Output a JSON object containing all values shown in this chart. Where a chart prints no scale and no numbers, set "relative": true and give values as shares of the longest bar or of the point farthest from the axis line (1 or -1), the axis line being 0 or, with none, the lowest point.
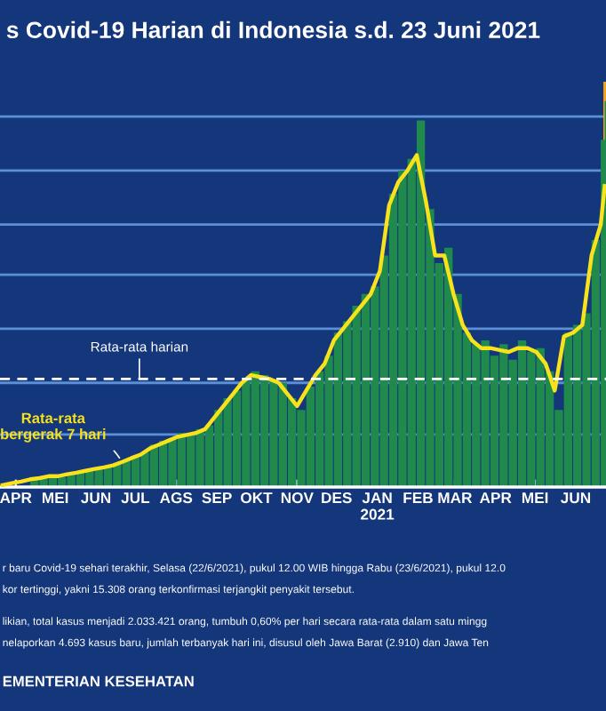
{
  "chart_data": {
    "type": "bar",
    "title": "s Covid-19 Harian di Indonesia s.d. 23 Juni 2021",
    "relative": true,
    "tick_labels": "x",
    "x": [
      "2020-03-22",
      "2020-03-29",
      "2020-04-05",
      "2020-04-12",
      "2020-04-19",
      "2020-04-26",
      "2020-05-03",
      "2020-05-10",
      "2020-05-17",
      "2020-05-24",
      "2020-05-31",
      "2020-06-07",
      "2020-06-14",
      "2020-06-21",
      "2020-06-28",
      "2020-07-05",
      "2020-07-12",
      "2020-07-19",
      "2020-07-26",
      "2020-08-02",
      "2020-08-09",
      "2020-08-16",
      "2020-08-23",
      "2020-08-30",
      "2020-09-06",
      "2020-09-13",
      "2020-09-20",
      "2020-09-27",
      "2020-10-04",
      "2020-10-11",
      "2020-10-18",
      "2020-10-25",
      "2020-11-01",
      "2020-11-08",
      "2020-11-15",
      "2020-11-22",
      "2020-11-29",
      "2020-12-06",
      "2020-12-13",
      "2020-12-20",
      "2020-12-27",
      "2021-01-03",
      "2021-01-10",
      "2021-01-17",
      "2021-01-24",
      "2021-01-31",
      "2021-02-07",
      "2021-02-14",
      "2021-02-21",
      "2021-02-28",
      "2021-03-07",
      "2021-03-14",
      "2021-03-21",
      "2021-03-28",
      "2021-04-04",
      "2021-04-11",
      "2021-04-18",
      "2021-04-25",
      "2021-05-02",
      "2021-05-09",
      "2021-05-16",
      "2021-05-23",
      "2021-05-30",
      "2021-06-06",
      "2021-06-13",
      "2021-06-20",
      "2021-06-23"
    ],
    "xlim": [
      "2020-03-20",
      "2021-06-24"
    ],
    "xticks": [
      {
        "value": "2020-04-01",
        "label": "APR"
      },
      {
        "value": "2020-05-01",
        "label": "MEI"
      },
      {
        "value": "2020-06-01",
        "label": "JUN"
      },
      {
        "value": "2020-07-01",
        "label": "JUL"
      },
      {
        "value": "2020-08-01",
        "label": "AGS"
      },
      {
        "value": "2020-09-01",
        "label": "SEP"
      },
      {
        "value": "2020-10-01",
        "label": "OKT"
      },
      {
        "value": "2020-11-01",
        "label": "NOV"
      },
      {
        "value": "2020-12-01",
        "label": "DES"
      },
      {
        "value": "2021-01-01",
        "label": "JAN\n2021"
      },
      {
        "value": "2021-02-01",
        "label": "FEB"
      },
      {
        "value": "2021-03-01",
        "label": "MAR"
      },
      {
        "value": "2021-04-01",
        "label": "APR"
      },
      {
        "value": "2021-05-01",
        "label": "MEI"
      },
      {
        "value": "2021-06-01",
        "label": "JUN"
      }
    ],
    "series": [
      {
        "color": "#1f8a4c",
        "values": [
          null,
          null,
          null,
          0.02,
          0.025,
          0.03,
          0.025,
          0.035,
          0.04,
          0.045,
          0.05,
          0.055,
          0.06,
          0.07,
          0.08,
          0.09,
          0.11,
          0.12,
          0.125,
          0.14,
          0.14,
          0.15,
          0.16,
          0.2,
          0.23,
          0.25,
          0.28,
          0.3,
          0.29,
          0.28,
          0.27,
          0.23,
          0.2,
          0.26,
          0.3,
          0.34,
          0.4,
          0.43,
          0.47,
          0.5,
          0.52,
          0.6,
          0.76,
          0.82,
          0.85,
          0.95,
          0.72,
          0.58,
          0.62,
          0.5,
          0.4,
          0.37,
          0.38,
          0.34,
          0.37,
          0.33,
          0.38,
          0.35,
          0.36,
          0.3,
          0.2,
          0.4,
          0.42,
          0.45,
          0.64,
          0.9,
          1.0
        ]
      },
      {
        "type": "line",
        "color": "#f7e21b",
        "values": [
          0.005,
          0.01,
          0.014,
          0.02,
          0.023,
          0.028,
          0.028,
          0.033,
          0.037,
          0.042,
          0.047,
          0.051,
          0.056,
          0.065,
          0.075,
          0.084,
          0.1,
          0.11,
          0.12,
          0.13,
          0.135,
          0.14,
          0.15,
          0.18,
          0.21,
          0.24,
          0.27,
          0.29,
          0.285,
          0.28,
          0.27,
          0.24,
          0.21,
          0.25,
          0.29,
          0.32,
          0.38,
          0.41,
          0.44,
          0.47,
          0.5,
          0.56,
          0.73,
          0.79,
          0.82,
          0.86,
          0.74,
          0.6,
          0.6,
          0.5,
          0.42,
          0.38,
          0.36,
          0.36,
          0.355,
          0.35,
          0.36,
          0.36,
          0.35,
          0.32,
          0.25,
          0.39,
          0.4,
          0.42,
          0.6,
          0.68,
          0.78
        ]
      }
    ],
    "ref_lines": [
      {
        "axis": "y",
        "value": 0.28,
        "label": "Rata-rata harian",
        "color": "#ffffff",
        "line_style": "dashed"
      },
      {
        "axis": "y",
        "value": 0.136,
        "color": "#5b8fd6"
      },
      {
        "axis": "y",
        "value": 0.27,
        "color": "#5b8fd6"
      },
      {
        "axis": "y",
        "value": 0.41,
        "color": "#5b8fd6"
      },
      {
        "axis": "y",
        "value": 0.55,
        "color": "#5b8fd6"
      },
      {
        "axis": "y",
        "value": 0.68,
        "color": "#5b8fd6"
      },
      {
        "axis": "y",
        "value": 0.82,
        "color": "#5b8fd6"
      },
      {
        "axis": "y",
        "value": 0.96,
        "color": "#5b8fd6"
      }
    ],
    "bands": [
      {
        "axis": "x",
        "from": "2021-06-22",
        "to": "2021-06-24",
        "color": "#f5a11c"
      }
    ],
    "annotations": [
      {
        "text": "Rata-rata\nbergerak 7 hari",
        "x": "2020-06-21",
        "y": 0.065
      },
      "r baru Covid-19 sehari terakhir, Selasa (22/6/2021), pukul 12.00 WIB hingga Rabu (23/6/2021), pukul 12.0",
      "kor tertinggi, yakni 15.308 orang terkonfirmasi terjangkit penyakit tersebut.",
      "likian, total kasus menjadi 2.033.421 orang, tumbuh 0,60% per hari secara rata-rata dalam satu mingg",
      "nelaporkan 4.693 kasus baru, jumlah terbanyak hari ini, disusul oleh Jawa Barat (2.910) dan Jawa Ten",
      "EMENTERIAN KESEHATAN"
    ]
  }
}
